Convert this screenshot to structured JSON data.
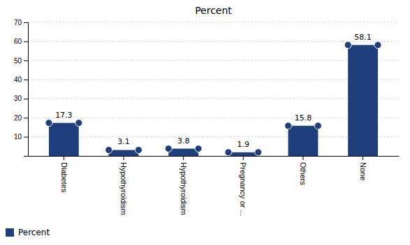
{
  "chart_data": {
    "type": "bar",
    "title": "Percent",
    "categories": [
      "Diabetes",
      "Hypothyroidism",
      "Hypothyroidism",
      "Pregnancy or ...",
      "Others",
      "None"
    ],
    "series": [
      {
        "name": "Percent",
        "color": "#1F3E7C",
        "values": [
          17.3,
          3.1,
          3.8,
          1.9,
          15.8,
          58.1
        ]
      }
    ],
    "ylim": [
      0,
      70
    ],
    "yticks": [
      10,
      20,
      30,
      40,
      50,
      60,
      70
    ],
    "grid": true,
    "data_labels": true,
    "legend": "bottom",
    "marker": "circle"
  }
}
